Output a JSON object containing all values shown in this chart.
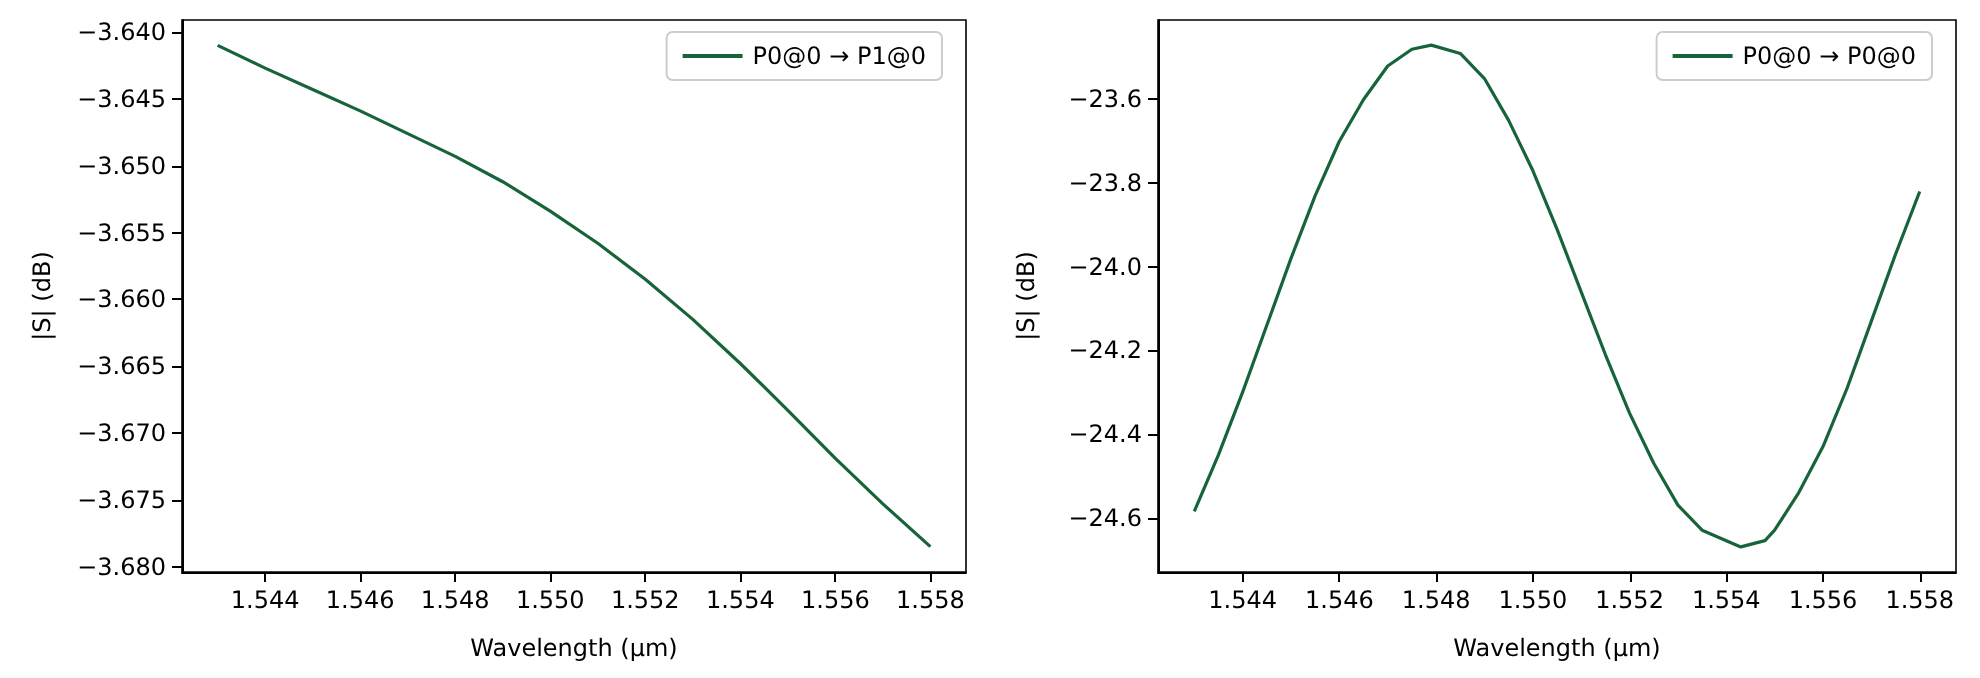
{
  "chart_data": [
    {
      "type": "line",
      "xlabel": "Wavelength (µm)",
      "ylabel": "|S| (dB)",
      "legend": "top right",
      "xlim": [
        1.54225,
        1.55875
      ],
      "ylim": [
        -3.6804,
        -3.6391
      ],
      "xticks": [
        1.544,
        1.546,
        1.548,
        {
          "value": 1.55,
          "label": "1.550"
        },
        1.552,
        1.554,
        1.556,
        1.558
      ],
      "yticks": [
        {
          "value": -3.64,
          "label": "−3.640"
        },
        {
          "value": -3.645,
          "label": "−3.645"
        },
        {
          "value": -3.65,
          "label": "−3.650"
        },
        {
          "value": -3.655,
          "label": "−3.655"
        },
        {
          "value": -3.66,
          "label": "−3.660"
        },
        {
          "value": -3.665,
          "label": "−3.665"
        },
        {
          "value": -3.67,
          "label": "−3.670"
        },
        {
          "value": -3.675,
          "label": "−3.675"
        },
        {
          "value": -3.68,
          "label": "−3.680"
        }
      ],
      "x": [
        1.543,
        1.544,
        1.545,
        1.546,
        1.547,
        1.548,
        1.549,
        1.55,
        1.551,
        1.552,
        1.553,
        1.554,
        1.555,
        1.556,
        1.557,
        1.558
      ],
      "series": [
        {
          "name": "P0@0 → P1@0",
          "color": "#17643a",
          "values": [
            -3.641,
            -3.6427,
            -3.6443,
            -3.6459,
            -3.6476,
            -3.6493,
            -3.6512,
            -3.6534,
            -3.6558,
            -3.6585,
            -3.6615,
            -3.6648,
            -3.6683,
            -3.6719,
            -3.6753,
            -3.6785
          ]
        }
      ]
    },
    {
      "type": "line",
      "xlabel": "Wavelength (µm)",
      "ylabel": "|S| (dB)",
      "legend": "top right",
      "xlim": [
        1.54225,
        1.55875
      ],
      "ylim": [
        -24.73,
        -23.41
      ],
      "xticks": [
        1.544,
        1.546,
        1.548,
        {
          "value": 1.55,
          "label": "1.550"
        },
        1.552,
        1.554,
        1.556,
        1.558
      ],
      "yticks": [
        {
          "value": -23.6,
          "label": "−23.6"
        },
        {
          "value": -23.8,
          "label": "−23.8"
        },
        {
          "value": -24.0,
          "label": "−24.0"
        },
        {
          "value": -24.2,
          "label": "−24.2"
        },
        {
          "value": -24.4,
          "label": "−24.4"
        },
        {
          "value": -24.6,
          "label": "−24.6"
        }
      ],
      "x": [
        1.543,
        1.5435,
        1.544,
        1.5445,
        1.545,
        1.5455,
        1.546,
        1.5465,
        1.547,
        1.5475,
        1.5479,
        1.5485,
        1.549,
        1.5495,
        1.55,
        1.5505,
        1.551,
        1.5515,
        1.552,
        1.5525,
        1.553,
        1.5535,
        1.5543,
        1.5548,
        1.555,
        1.5555,
        1.556,
        1.5565,
        1.557,
        1.5575,
        1.558
      ],
      "series": [
        {
          "name": "P0@0 → P0@0",
          "color": "#17643a",
          "values": [
            -24.585,
            -24.45,
            -24.3,
            -24.14,
            -23.98,
            -23.83,
            -23.7,
            -23.6,
            -23.52,
            -23.48,
            -23.47,
            -23.49,
            -23.55,
            -23.65,
            -23.77,
            -23.91,
            -24.06,
            -24.21,
            -24.35,
            -24.47,
            -24.57,
            -24.63,
            -24.67,
            -24.655,
            -24.63,
            -24.54,
            -24.43,
            -24.29,
            -24.13,
            -23.97,
            -23.82
          ]
        }
      ]
    }
  ]
}
